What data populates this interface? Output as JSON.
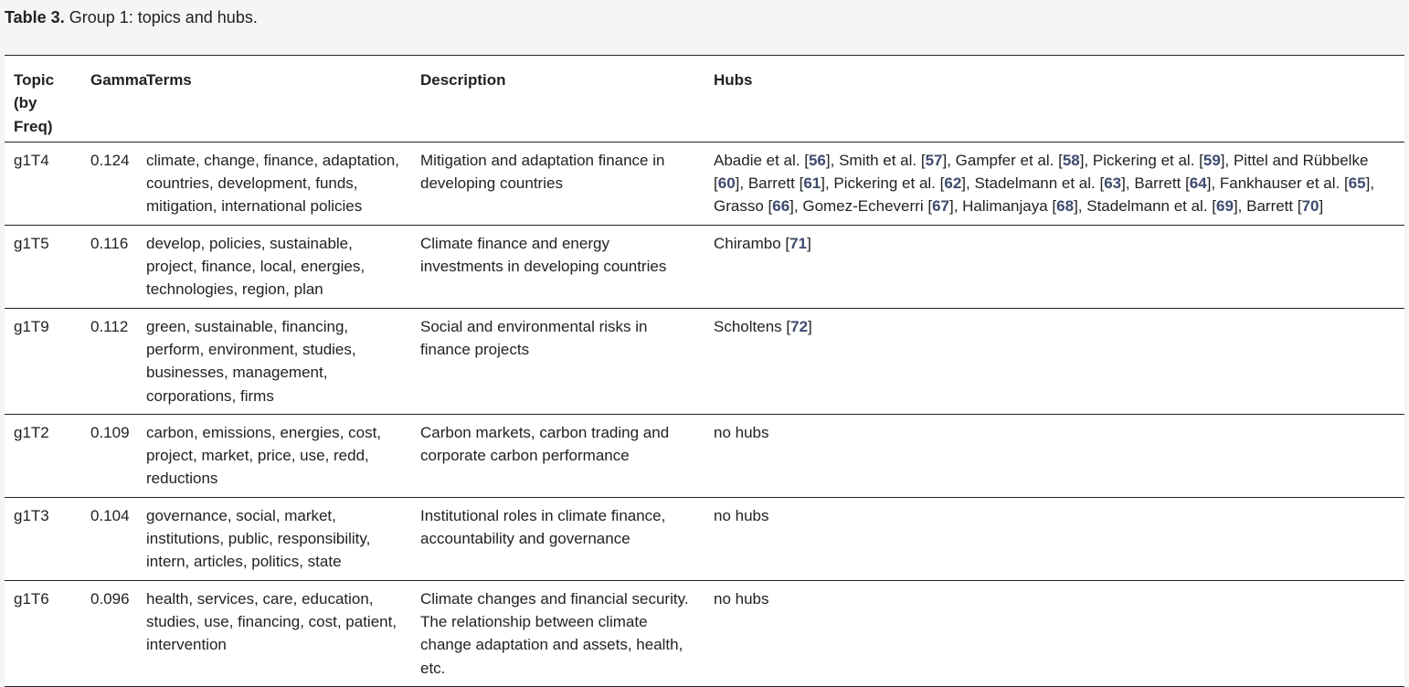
{
  "caption": {
    "label": "Table 3.",
    "text": " Group 1: topics and hubs."
  },
  "headers": {
    "topic_line1": "Topic",
    "topic_line2": "(by Freq)",
    "gamma": "Gamma",
    "terms": "Terms",
    "description": "Description",
    "hubs": "Hubs"
  },
  "rows": [
    {
      "topic": "g1T4",
      "gamma": "0.124",
      "terms": "climate, change, finance, adaptation, countries, development, funds, mitigation, international policies",
      "description": "Mitigation and adaptation finance in developing countries",
      "hubs": [
        {
          "name": "Abadie et al.",
          "ref": "56"
        },
        {
          "name": "Smith et al.",
          "ref": "57"
        },
        {
          "name": "Gampfer et al.",
          "ref": "58"
        },
        {
          "name": "Pickering et al.",
          "ref": "59"
        },
        {
          "name": "Pittel and Rübbelke",
          "ref": "60"
        },
        {
          "name": "Barrett",
          "ref": "61"
        },
        {
          "name": "Pickering et al.",
          "ref": "62"
        },
        {
          "name": "Stadelmann et al.",
          "ref": "63"
        },
        {
          "name": "Barrett",
          "ref": "64"
        },
        {
          "name": "Fankhauser et al.",
          "ref": "65"
        },
        {
          "name": "Grasso",
          "ref": "66"
        },
        {
          "name": "Gomez-Echeverri",
          "ref": "67"
        },
        {
          "name": "Halimanjaya",
          "ref": "68"
        },
        {
          "name": "Stadelmann et al.",
          "ref": "69"
        },
        {
          "name": "Barrett",
          "ref": "70"
        }
      ]
    },
    {
      "topic": "g1T5",
      "gamma": "0.116",
      "terms": "develop, policies, sustainable, project, finance, local, energies, technologies, region, plan",
      "description": "Climate finance and energy investments in developing countries",
      "hubs": [
        {
          "name": "Chirambo",
          "ref": "71"
        }
      ]
    },
    {
      "topic": "g1T9",
      "gamma": "0.112",
      "terms": "green, sustainable, financing, perform, environment, studies, businesses, management, corporations, firms",
      "description": "Social and environmental risks in finance projects",
      "hubs": [
        {
          "name": "Scholtens",
          "ref": "72"
        }
      ]
    },
    {
      "topic": "g1T2",
      "gamma": "0.109",
      "terms": "carbon, emissions, energies, cost, project, market, price, use, redd, reductions",
      "description": "Carbon markets, carbon trading and corporate carbon performance",
      "hubs_text": "no hubs"
    },
    {
      "topic": "g1T3",
      "gamma": "0.104",
      "terms": "governance, social, market, institutions, public, responsibility, intern, articles, politics, state",
      "description": "Institutional roles in climate finance, accountability and governance",
      "hubs_text": "no hubs"
    },
    {
      "topic": "g1T6",
      "gamma": "0.096",
      "terms": "health, services, care, education, studies, use, financing, cost, patient, intervention",
      "description": "Climate changes and financial security. The relationship between climate change adaptation and assets, health, etc.",
      "hubs_text": "no hubs"
    }
  ]
}
